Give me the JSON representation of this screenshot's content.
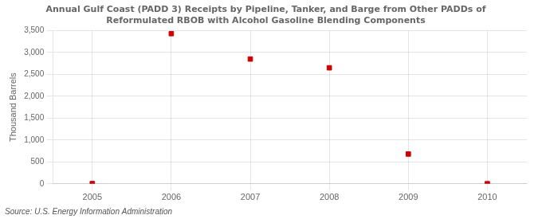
{
  "chart_data": {
    "type": "scatter",
    "title": [
      "Annual Gulf Coast (PADD 3) Receipts by Pipeline, Tanker, and Barge from Other PADDs of",
      "Reformulated RBOB with Alcohol Gasoline Blending Components"
    ],
    "ylabel": "Thousand Barrels",
    "annotations": [
      "Source: U.S. Energy Information Administration"
    ],
    "x": [
      2005,
      2006,
      2007,
      2008,
      2009,
      2010
    ],
    "values": [
      5,
      3430,
      2850,
      2650,
      680,
      2
    ],
    "color": "#cc0000",
    "marker": "square",
    "xlim": [
      2004.5,
      2010.5
    ],
    "xticks": [
      2005,
      2006,
      2007,
      2008,
      2009,
      2010
    ],
    "ylim": [
      0,
      3500
    ],
    "yticks": [
      0,
      500,
      {
        "value": 1000,
        "label": "1,000"
      },
      {
        "value": 1500,
        "label": "1,500"
      },
      {
        "value": 2000,
        "label": "2,000"
      },
      {
        "value": 2500,
        "label": "2,500"
      },
      {
        "value": 3000,
        "label": "3,000"
      },
      {
        "value": 3500,
        "label": "3,500"
      }
    ],
    "grid": true
  }
}
